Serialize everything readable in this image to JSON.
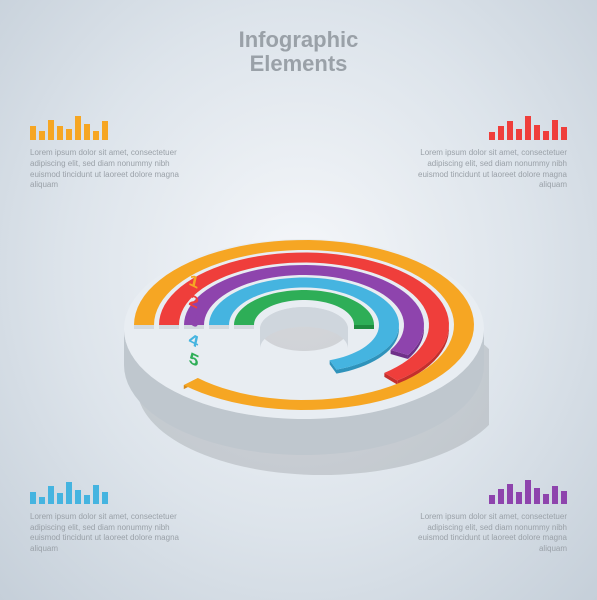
{
  "title_line1": "Infographic",
  "title_line2": "Elements",
  "title_fontsize": 22,
  "background_gradient": [
    "#f5f7fa",
    "#dde4eb",
    "#c5cfd9"
  ],
  "rings": [
    {
      "index": 1,
      "label": "1",
      "color": "#f6a623",
      "side": "#d6891b",
      "arc_deg": 315,
      "radius": 170,
      "label_color": "#f6a623"
    },
    {
      "index": 2,
      "label": "2",
      "color": "#ef3e3b",
      "side": "#c42f2c",
      "arc_deg": 230,
      "radius": 145,
      "label_color": "#ef3e3b"
    },
    {
      "index": 3,
      "label": "3",
      "color": "#8e44ad",
      "side": "#6f3089",
      "arc_deg": 210,
      "radius": 120,
      "label_color": "#8e44ad"
    },
    {
      "index": 4,
      "label": "4",
      "color": "#45b4e0",
      "side": "#2f93bb",
      "arc_deg": 250,
      "radius": 95,
      "label_color": "#45b4e0"
    },
    {
      "index": 5,
      "label": "5",
      "color": "#2eae57",
      "side": "#1f8b40",
      "arc_deg": 180,
      "radius": 70,
      "label_color": "#2eae57"
    }
  ],
  "ring_thickness": 20,
  "ring_depth": 36,
  "base_color_top": "#e8edf2",
  "base_color_side": "#bfc7ce",
  "label_fontsize": 17,
  "corners": {
    "tl": {
      "color": "#f6a623",
      "bars": [
        14,
        9,
        20,
        14,
        11,
        24,
        16,
        9,
        19
      ],
      "text": "Lorem ipsum dolor sit amet, consectetuer adipiscing elit, sed diam nonummy nibh euismod tincidunt ut laoreet dolore magna aliquam"
    },
    "tr": {
      "color": "#ef3e3b",
      "bars": [
        8,
        14,
        19,
        11,
        24,
        15,
        9,
        20,
        13
      ],
      "text": "Lorem ipsum dolor sit amet, consectetuer adipiscing elit, sed diam nonummy nibh euismod tincidunt ut laoreet dolore magna aliquam"
    },
    "bl": {
      "color": "#45b4e0",
      "bars": [
        12,
        7,
        18,
        11,
        22,
        14,
        9,
        19,
        12
      ],
      "text": "Lorem ipsum dolor sit amet, consectetuer adipiscing elit, sed diam nonummy nibh euismod tincidunt ut laoreet dolore magna aliquam"
    },
    "br": {
      "color": "#8e44ad",
      "bars": [
        9,
        15,
        20,
        12,
        24,
        16,
        10,
        18,
        13
      ],
      "text": "Lorem ipsum dolor sit amet, consectetuer adipiscing elit, sed diam nonummy nibh euismod tincidunt ut laoreet dolore magna aliquam"
    }
  },
  "desc_fontsize": 8,
  "desc_color": "#9aa1a8"
}
